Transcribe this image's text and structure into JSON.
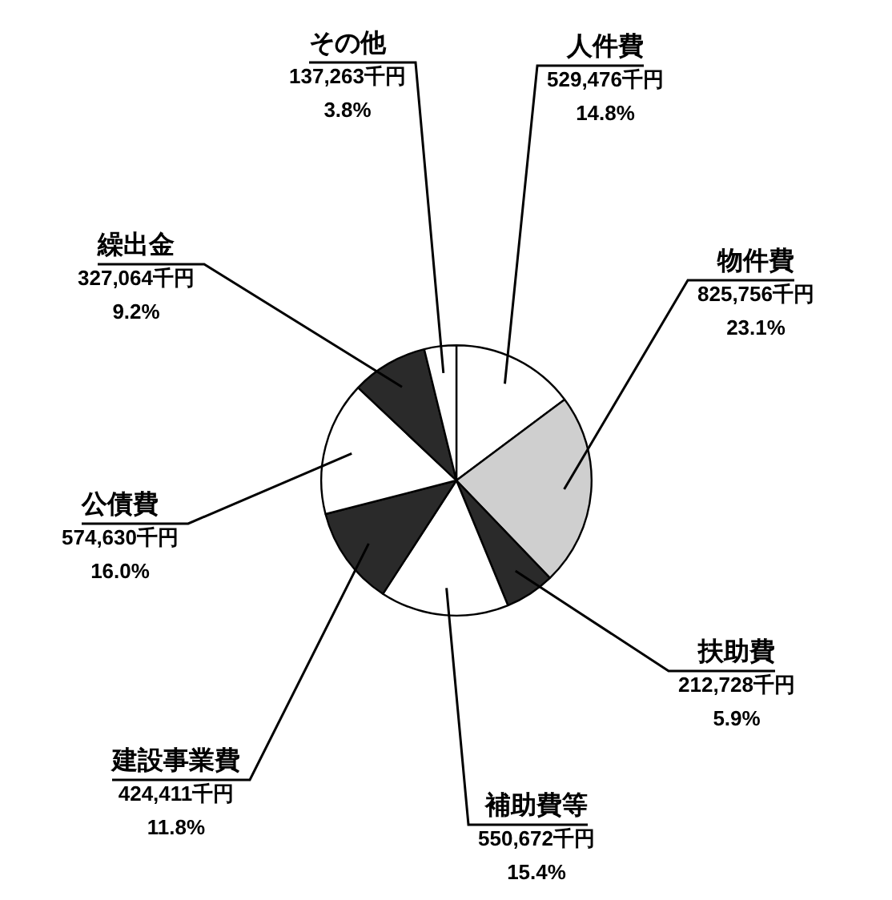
{
  "chart_data": {
    "type": "pie",
    "categories": [
      "人件費",
      "物件費",
      "扶助費",
      "補助費等",
      "建設事業費",
      "公債費",
      "繰出金",
      "その他"
    ],
    "values": [
      529476,
      825756,
      212728,
      550672,
      424411,
      574630,
      327064,
      137263
    ],
    "colors": [
      "#ffffff",
      "#cfcfcf",
      "#2a2a2a",
      "#ffffff",
      "#2a2a2a",
      "#ffffff",
      "#2a2a2a",
      "#ffffff"
    ],
    "value_labels": [
      "529,476千円\n14.8%",
      "825,756千円\n23.1%",
      "212,728千円\n5.9%",
      "550,672千円\n15.4%",
      "424,411千円\n11.8%",
      "574,630千円\n16.0%",
      "327,064千円\n9.2%",
      "137,263千円\n3.8%"
    ],
    "legend": false
  }
}
